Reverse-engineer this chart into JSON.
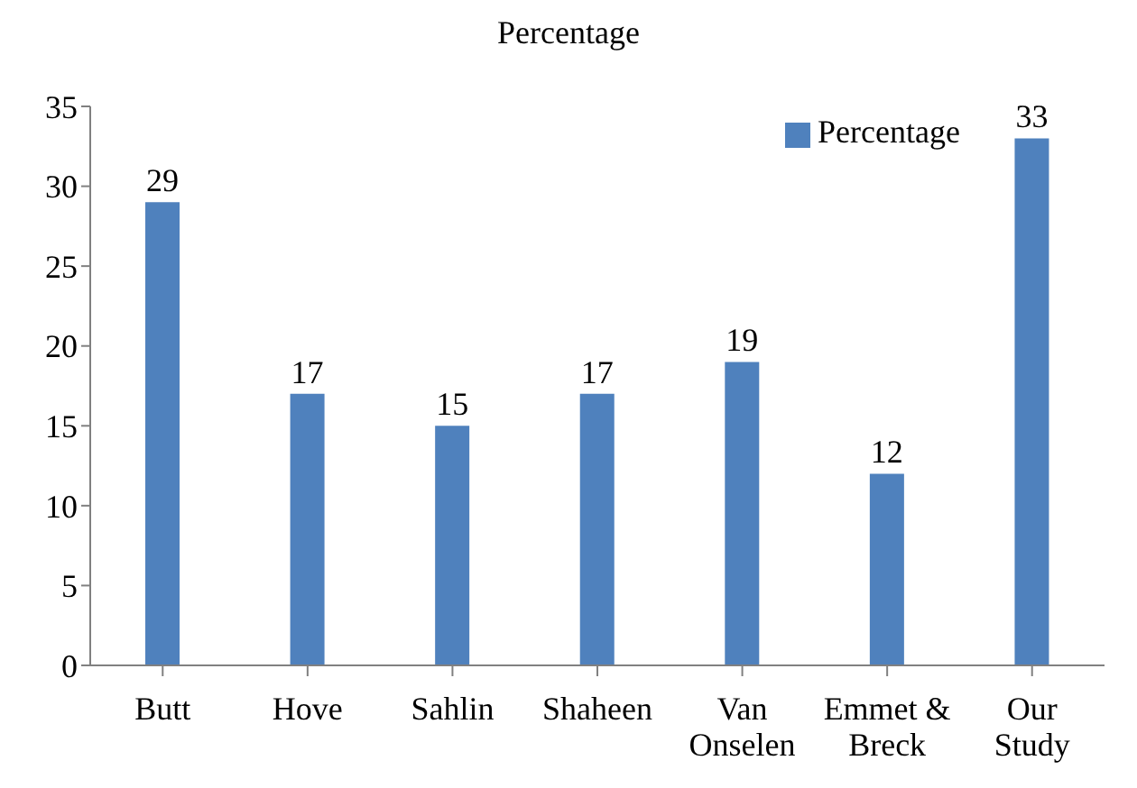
{
  "chart_data": {
    "type": "bar",
    "title": "Percentage",
    "categories": [
      "Butt",
      "Hove",
      "Sahlin",
      "Shaheen",
      "Van Onselen",
      "Emmet & Breck",
      "Our Study"
    ],
    "series": [
      {
        "name": "Percentage",
        "color": "#4f81bd",
        "values": [
          29,
          17,
          15,
          17,
          19,
          12,
          33
        ]
      }
    ],
    "ylim": [
      0,
      35
    ],
    "yticks": [
      0,
      5,
      10,
      15,
      20,
      25,
      30,
      35
    ],
    "grid": false,
    "legend": "top right",
    "data_labels": true
  }
}
